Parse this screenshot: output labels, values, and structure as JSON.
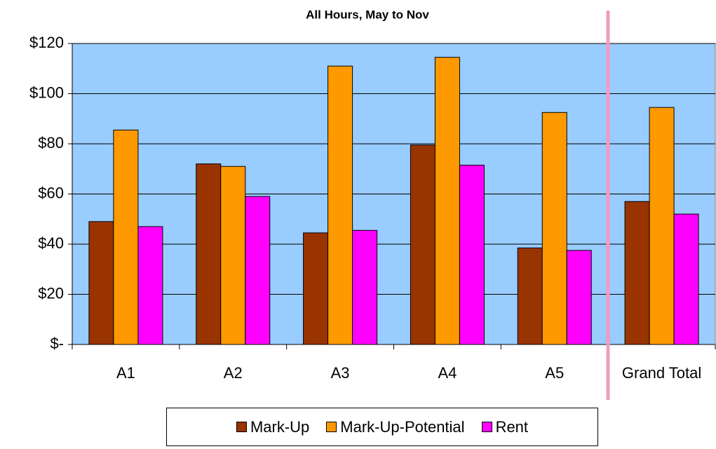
{
  "chart_data": {
    "type": "bar",
    "title": "All Hours, May to Nov",
    "categories": [
      "A1",
      "A2",
      "A3",
      "A4",
      "A5",
      "Grand Total"
    ],
    "series": [
      {
        "name": "Mark-Up",
        "color": "#993300",
        "values": [
          49,
          72,
          44.5,
          79.5,
          38.5,
          57
        ]
      },
      {
        "name": "Mark-Up-Potential",
        "color": "#FF9900",
        "values": [
          85.5,
          71,
          111,
          114.5,
          92.5,
          94.5
        ]
      },
      {
        "name": "Rent",
        "color": "#FF00FF",
        "values": [
          47,
          59,
          45.5,
          71.5,
          37.5,
          52
        ]
      }
    ],
    "ylim": [
      0,
      120
    ],
    "yticks": [
      {
        "value": 0,
        "label": "$-"
      },
      {
        "value": 20,
        "label": "$20"
      },
      {
        "value": 40,
        "label": "$40"
      },
      {
        "value": 60,
        "label": "$60"
      },
      {
        "value": 80,
        "label": "$80"
      },
      {
        "value": 100,
        "label": "$100"
      },
      {
        "value": 120,
        "label": "$120"
      }
    ],
    "grid": true,
    "plot_background": "#99CCFF"
  }
}
